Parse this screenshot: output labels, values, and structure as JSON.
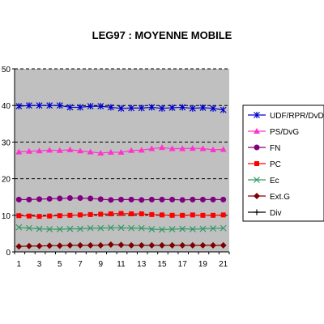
{
  "chart_data": {
    "type": "line",
    "title": "LEG97 : MOYENNE MOBILE",
    "xlabel": "",
    "ylabel": "",
    "x": [
      1,
      2,
      3,
      4,
      5,
      6,
      7,
      8,
      9,
      10,
      11,
      12,
      13,
      14,
      15,
      16,
      17,
      18,
      19,
      20,
      21
    ],
    "x_tick_labels": [
      "1",
      "3",
      "5",
      "7",
      "9",
      "11",
      "13",
      "15",
      "17",
      "19",
      "21"
    ],
    "y_tick_labels": [
      "0",
      "10",
      "20",
      "30",
      "40",
      "50"
    ],
    "ylim": [
      0,
      50
    ],
    "grid": "horizontal dashed",
    "legend_position": "right",
    "series": [
      {
        "name": "UDF/RPR/DvD",
        "color": "#0000cc",
        "marker": "asterisk",
        "values": [
          39.8,
          40,
          40,
          40,
          40,
          39.5,
          39.5,
          39.8,
          39.8,
          39.5,
          39.2,
          39.3,
          39.3,
          39.5,
          39.2,
          39.4,
          39.5,
          39.2,
          39.4,
          39.2,
          38.8
        ]
      },
      {
        "name": "PS/DvG",
        "color": "#ff33cc",
        "marker": "triangle",
        "values": [
          27.3,
          27.5,
          27.6,
          27.8,
          27.7,
          27.9,
          27.6,
          27.3,
          27,
          27.2,
          27.2,
          27.7,
          27.8,
          28.2,
          28.5,
          28.2,
          28.2,
          28.3,
          28.2,
          27.9,
          28
        ]
      },
      {
        "name": "FN",
        "color": "#800080",
        "marker": "circle",
        "values": [
          14.3,
          14.3,
          14.4,
          14.5,
          14.6,
          14.7,
          14.7,
          14.6,
          14.4,
          14.2,
          14.3,
          14.3,
          14.2,
          14.3,
          14.3,
          14.3,
          14.2,
          14.3,
          14.3,
          14.3,
          14.3
        ]
      },
      {
        "name": "PC",
        "color": "#ff0000",
        "marker": "square",
        "values": [
          9.9,
          9.8,
          9.7,
          9.8,
          9.9,
          10,
          10.1,
          10.2,
          10.3,
          10.4,
          10.5,
          10.4,
          10.4,
          10.2,
          10.1,
          10,
          10,
          10.1,
          10,
          10,
          10.1
        ]
      },
      {
        "name": "Ec",
        "color": "#339966",
        "marker": "x",
        "values": [
          6.7,
          6.5,
          6.3,
          6.2,
          6.2,
          6.3,
          6.3,
          6.5,
          6.5,
          6.6,
          6.6,
          6.5,
          6.5,
          6.2,
          6.1,
          6.2,
          6.3,
          6.2,
          6.3,
          6.4,
          6.5
        ]
      },
      {
        "name": "Ext.G",
        "color": "#800000",
        "marker": "diamond",
        "values": [
          1.5,
          1.6,
          1.6,
          1.7,
          1.7,
          1.8,
          1.8,
          1.8,
          1.8,
          2,
          1.9,
          1.8,
          1.8,
          1.8,
          1.8,
          1.8,
          1.8,
          1.8,
          1.8,
          1.8,
          1.8
        ]
      },
      {
        "name": "Div",
        "color": "#000000",
        "marker": "plus",
        "values": [
          null,
          null,
          null,
          null,
          null,
          null,
          null,
          null,
          null,
          null,
          null,
          null,
          null,
          null,
          null,
          null,
          null,
          null,
          null,
          null,
          null
        ]
      }
    ]
  }
}
